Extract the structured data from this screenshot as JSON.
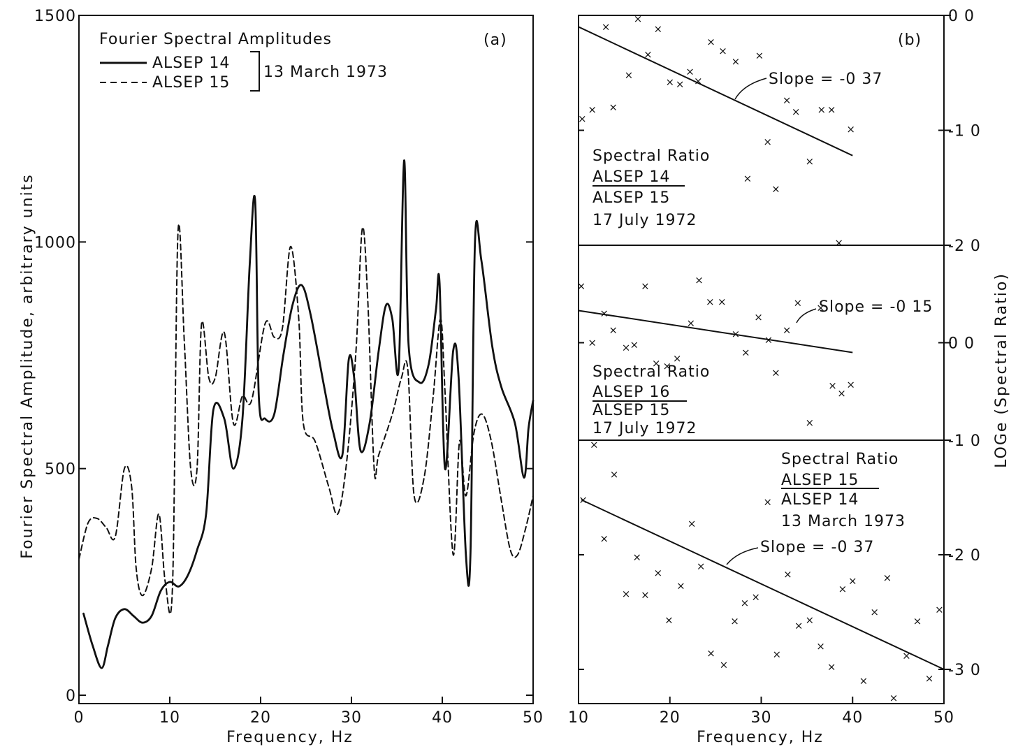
{
  "chart_data": [
    {
      "id": "a",
      "type": "line",
      "panel_label": "(a)",
      "title": "Fourier Spectral Amplitudes",
      "legend_date": "13 March 1973",
      "xlabel": "Frequency, Hz",
      "ylabel": "Fourier Spectral Amplitude, arbitrary units",
      "xlim": [
        0,
        50
      ],
      "ylim": [
        0,
        1500
      ],
      "x_ticks": [
        0,
        10,
        20,
        30,
        40,
        50
      ],
      "y_ticks": [
        0,
        500,
        1000,
        1500
      ],
      "series": [
        {
          "name": "ALSEP 14",
          "style": "solid",
          "points": [
            [
              0.5,
              180
            ],
            [
              1.5,
              110
            ],
            [
              2.5,
              60
            ],
            [
              3.2,
              110
            ],
            [
              4,
              170
            ],
            [
              5,
              190
            ],
            [
              6,
              175
            ],
            [
              7,
              160
            ],
            [
              8,
              175
            ],
            [
              9,
              230
            ],
            [
              10,
              250
            ],
            [
              11,
              240
            ],
            [
              12,
              265
            ],
            [
              13,
              320
            ],
            [
              14,
              400
            ],
            [
              14.8,
              630
            ],
            [
              16,
              610
            ],
            [
              17,
              500
            ],
            [
              18,
              610
            ],
            [
              18.8,
              950
            ],
            [
              19.4,
              1090
            ],
            [
              19.8,
              660
            ],
            [
              20.5,
              610
            ],
            [
              21.5,
              620
            ],
            [
              22.5,
              750
            ],
            [
              23.5,
              860
            ],
            [
              24.5,
              905
            ],
            [
              25.5,
              840
            ],
            [
              27,
              680
            ],
            [
              28,
              580
            ],
            [
              29,
              530
            ],
            [
              29.7,
              740
            ],
            [
              30.3,
              700
            ],
            [
              31,
              540
            ],
            [
              32,
              600
            ],
            [
              33,
              760
            ],
            [
              33.8,
              860
            ],
            [
              34.5,
              830
            ],
            [
              35.2,
              720
            ],
            [
              35.8,
              1180
            ],
            [
              36.3,
              770
            ],
            [
              37.5,
              690
            ],
            [
              38.5,
              730
            ],
            [
              39.3,
              850
            ],
            [
              39.7,
              910
            ],
            [
              40.3,
              500
            ],
            [
              41.2,
              760
            ],
            [
              41.8,
              700
            ],
            [
              42.6,
              310
            ],
            [
              43.1,
              310
            ],
            [
              43.6,
              1000
            ],
            [
              44.3,
              960
            ],
            [
              45.5,
              770
            ],
            [
              46.5,
              680
            ],
            [
              48,
              600
            ],
            [
              49,
              480
            ],
            [
              49.5,
              590
            ],
            [
              50,
              650
            ]
          ]
        },
        {
          "name": "ALSEP 15",
          "style": "dashed",
          "points": [
            [
              0,
              300
            ],
            [
              1,
              380
            ],
            [
              2,
              390
            ],
            [
              3,
              370
            ],
            [
              4,
              350
            ],
            [
              5,
              500
            ],
            [
              5.8,
              460
            ],
            [
              6.3,
              280
            ],
            [
              7,
              220
            ],
            [
              8,
              280
            ],
            [
              8.8,
              400
            ],
            [
              9.5,
              250
            ],
            [
              10.3,
              240
            ],
            [
              10.9,
              1020
            ],
            [
              11.6,
              780
            ],
            [
              12.3,
              500
            ],
            [
              13,
              500
            ],
            [
              13.5,
              820
            ],
            [
              14.3,
              700
            ],
            [
              15,
              700
            ],
            [
              16,
              800
            ],
            [
              17,
              600
            ],
            [
              18,
              660
            ],
            [
              19,
              650
            ],
            [
              20.5,
              820
            ],
            [
              21.5,
              790
            ],
            [
              22.4,
              810
            ],
            [
              23.3,
              990
            ],
            [
              24.2,
              830
            ],
            [
              24.7,
              600
            ],
            [
              26,
              560
            ],
            [
              27.5,
              460
            ],
            [
              28.5,
              400
            ],
            [
              29.5,
              520
            ],
            [
              30.5,
              760
            ],
            [
              31.2,
              1030
            ],
            [
              31.8,
              870
            ],
            [
              32.5,
              500
            ],
            [
              33,
              530
            ],
            [
              34.5,
              620
            ],
            [
              35.5,
              700
            ],
            [
              36.2,
              720
            ],
            [
              36.9,
              440
            ],
            [
              38,
              480
            ],
            [
              39,
              660
            ],
            [
              39.8,
              830
            ],
            [
              40.3,
              670
            ],
            [
              41.2,
              310
            ],
            [
              41.9,
              560
            ],
            [
              42.6,
              440
            ],
            [
              43.5,
              580
            ],
            [
              44.4,
              620
            ],
            [
              45.4,
              560
            ],
            [
              46.5,
              430
            ],
            [
              47.5,
              320
            ],
            [
              48.3,
              310
            ],
            [
              49.2,
              370
            ],
            [
              50,
              440
            ]
          ]
        }
      ]
    },
    {
      "id": "b",
      "type": "scatter",
      "panel_label": "(b)",
      "xlabel": "Frequency, Hz",
      "ylabel": "LOGe (Spectral Ratio)",
      "xlim": [
        10,
        50
      ],
      "x_ticks": [
        10,
        20,
        30,
        40,
        50
      ],
      "right_ticks": [
        "0 0",
        "-1 0",
        "-2 0",
        "0 0",
        "-1 0",
        "-2 0",
        "-3 0"
      ],
      "subplots": [
        {
          "id": "b1",
          "numerator": "ALSEP 14",
          "denominator": "ALSEP 15",
          "heading": "Spectral Ratio",
          "date": "17 July 1972",
          "slope_label": "Slope = -0 37",
          "ylim": [
            -2.0,
            0.0
          ],
          "fit": {
            "x": [
              10,
              40
            ],
            "y": [
              -0.1,
              -1.22
            ]
          },
          "points": [
            [
              10.4,
              -0.9
            ],
            [
              11.5,
              -0.82
            ],
            [
              13,
              -0.1
            ],
            [
              13.8,
              -0.8
            ],
            [
              15.5,
              -0.52
            ],
            [
              16.5,
              -0.03
            ],
            [
              17.6,
              -0.34
            ],
            [
              18.7,
              -0.12
            ],
            [
              20,
              -0.58
            ],
            [
              21.1,
              -0.6
            ],
            [
              22.2,
              -0.49
            ],
            [
              23.1,
              -0.57
            ],
            [
              24.5,
              -0.23
            ],
            [
              25.8,
              -0.31
            ],
            [
              27.2,
              -0.4
            ],
            [
              28.5,
              -1.42
            ],
            [
              29.8,
              -0.35
            ],
            [
              30.7,
              -1.1
            ],
            [
              31.6,
              -1.51
            ],
            [
              32.8,
              -0.74
            ],
            [
              33.8,
              -0.84
            ],
            [
              35.3,
              -1.27
            ],
            [
              36.6,
              -0.82
            ],
            [
              37.7,
              -0.82
            ],
            [
              39.8,
              -0.99
            ],
            [
              38.5,
              -1.98
            ]
          ]
        },
        {
          "id": "b2",
          "numerator": "ALSEP 16",
          "denominator": "ALSEP 15",
          "heading": "Spectral Ratio",
          "date": "17 July 1972",
          "slope_label": "Slope = -0 15",
          "ylim": [
            -1.0,
            1.0
          ],
          "fit": {
            "x": [
              10,
              40
            ],
            "y": [
              0.33,
              -0.1
            ]
          },
          "points": [
            [
              10.3,
              0.58
            ],
            [
              11.5,
              0.0
            ],
            [
              12.8,
              0.3
            ],
            [
              13.8,
              0.13
            ],
            [
              15.2,
              -0.05
            ],
            [
              16.1,
              -0.02
            ],
            [
              17.3,
              0.58
            ],
            [
              18.5,
              -0.21
            ],
            [
              19.7,
              -0.24
            ],
            [
              20.8,
              -0.16
            ],
            [
              22.3,
              0.2
            ],
            [
              23.2,
              0.64
            ],
            [
              24.4,
              0.42
            ],
            [
              25.7,
              0.42
            ],
            [
              27.2,
              0.09
            ],
            [
              28.3,
              -0.1
            ],
            [
              29.7,
              0.26
            ],
            [
              30.8,
              0.03
            ],
            [
              31.6,
              -0.31
            ],
            [
              32.8,
              0.13
            ],
            [
              34,
              0.41
            ],
            [
              35.3,
              -0.82
            ],
            [
              36.5,
              0.36
            ],
            [
              37.8,
              -0.44
            ],
            [
              38.8,
              -0.52
            ],
            [
              39.8,
              -0.43
            ]
          ]
        },
        {
          "id": "b3",
          "numerator": "ALSEP 15",
          "denominator": "ALSEP 14",
          "heading": "Spectral Ratio",
          "date": "13 March 1973",
          "slope_label": "Slope = -0 37",
          "ylim": [
            -3.25,
            -1.0
          ],
          "fit": {
            "x": [
              10.3,
              50
            ],
            "y": [
              -1.52,
              -3.0
            ]
          },
          "points": [
            [
              10.5,
              -1.52
            ],
            [
              11.7,
              -1.04
            ],
            [
              12.8,
              -1.86
            ],
            [
              13.9,
              -1.3
            ],
            [
              15.2,
              -2.34
            ],
            [
              16.4,
              -2.02
            ],
            [
              17.3,
              -2.35
            ],
            [
              18.7,
              -2.16
            ],
            [
              19.9,
              -2.57
            ],
            [
              21.2,
              -2.27
            ],
            [
              22.4,
              -1.73
            ],
            [
              23.4,
              -2.1
            ],
            [
              24.5,
              -2.86
            ],
            [
              25.9,
              -2.96
            ],
            [
              27.1,
              -2.58
            ],
            [
              28.2,
              -2.42
            ],
            [
              29.4,
              -2.37
            ],
            [
              30.7,
              -1.54
            ],
            [
              31.7,
              -2.87
            ],
            [
              32.9,
              -2.17
            ],
            [
              34.1,
              -2.62
            ],
            [
              35.3,
              -2.57
            ],
            [
              36.5,
              -2.8
            ],
            [
              37.7,
              -2.98
            ],
            [
              38.9,
              -2.3
            ],
            [
              40,
              -2.23
            ],
            [
              41.2,
              -3.1
            ],
            [
              42.4,
              -2.5
            ],
            [
              43.8,
              -2.2
            ],
            [
              44.5,
              -3.25
            ],
            [
              45.9,
              -2.88
            ],
            [
              47.1,
              -2.58
            ],
            [
              48.4,
              -3.08
            ],
            [
              49.5,
              -2.48
            ]
          ]
        }
      ]
    }
  ]
}
